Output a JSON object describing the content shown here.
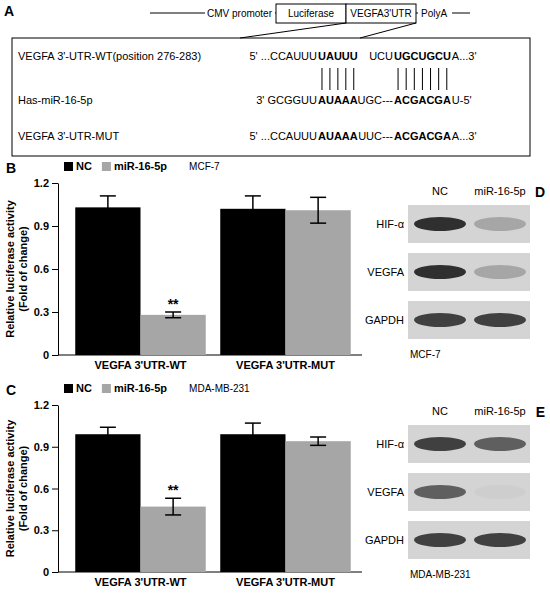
{
  "diagram": {
    "panel_label": "A",
    "construct": [
      "CMV promoter",
      "Luciferase",
      "VEGFA3'UTR",
      "PolyA"
    ],
    "alignment": [
      {
        "label": "VEGFA 3'-UTR-WT(position 276-283)",
        "segments": [
          {
            "text": "5' ...CCAUUU",
            "bold": false
          },
          {
            "text": "UAUUU",
            "bold": true
          },
          {
            "text": "UCU",
            "bold": false
          },
          {
            "text": "UGCUGCU",
            "bold": true
          },
          {
            "text": "A...3'",
            "bold": false
          }
        ]
      },
      {
        "label": "Has-miR-16-5p",
        "segments": [
          {
            "text": "3' GCGGUU",
            "bold": false
          },
          {
            "text": "AUAAA",
            "bold": true
          },
          {
            "text": "UGC---",
            "bold": false
          },
          {
            "text": "ACGACGA",
            "bold": true
          },
          {
            "text": "U-5'",
            "bold": false
          }
        ]
      },
      {
        "label": "VEGFA 3'-UTR-MUT",
        "segments": [
          {
            "text": "5' ...CCAUUU",
            "bold": false
          },
          {
            "text": "AUAAA",
            "bold": true
          },
          {
            "text": "UUC---",
            "bold": false
          },
          {
            "text": "ACGACGA",
            "bold": true
          },
          {
            "text": "A...3'",
            "bold": false
          }
        ]
      }
    ]
  },
  "chart_data": [
    {
      "type": "bar",
      "panel_label": "B",
      "title": "MCF-7",
      "y_label": [
        "Relative luciferase activity",
        "(Fold of change)"
      ],
      "categories": [
        "VEGFA 3'UTR-WT",
        "VEGFA 3'UTR-MUT"
      ],
      "series": [
        {
          "name": "NC",
          "color": "#000000",
          "values": [
            1.03,
            1.02
          ],
          "errors": [
            0.08,
            0.09
          ],
          "value_annotations": [
            null,
            null
          ]
        },
        {
          "name": "miR-16-5p",
          "color": "#a6a6a6",
          "values": [
            0.28,
            1.01
          ],
          "errors": [
            0.02,
            0.09
          ],
          "value_annotations": [
            "**",
            null
          ]
        }
      ],
      "ylim": [
        0,
        1.2
      ],
      "yticks": [
        0,
        0.3,
        0.6,
        0.9,
        1.2
      ],
      "legend": "top-left"
    },
    {
      "type": "bar",
      "panel_label": "C",
      "title": "MDA-MB-231",
      "y_label": [
        "Relative luciferase activity",
        "(Fold of change)"
      ],
      "categories": [
        "VEGFA 3'UTR-WT",
        "VEGFA 3'UTR-MUT"
      ],
      "series": [
        {
          "name": "NC",
          "color": "#000000",
          "values": [
            0.99,
            0.99
          ],
          "errors": [
            0.05,
            0.08
          ],
          "value_annotations": [
            null,
            null
          ]
        },
        {
          "name": "miR-16-5p",
          "color": "#a6a6a6",
          "values": [
            0.47,
            0.94
          ],
          "errors": [
            0.06,
            0.03
          ],
          "value_annotations": [
            "**",
            null
          ]
        }
      ],
      "ylim": [
        0,
        1.2
      ],
      "yticks": [
        0,
        0.3,
        0.6,
        0.9,
        1.2
      ],
      "legend": "top-left"
    }
  ],
  "blots": [
    {
      "panel_label": "D",
      "cell_line": "MCF-7",
      "columns": [
        "NC",
        "miR-16-5p"
      ],
      "rows": [
        {
          "label": "HIF-α",
          "intensity": [
            0.85,
            0.45
          ]
        },
        {
          "label": "VEGFA",
          "intensity": [
            0.85,
            0.45
          ]
        },
        {
          "label": "GAPDH",
          "intensity": [
            0.8,
            0.8
          ]
        }
      ]
    },
    {
      "panel_label": "E",
      "cell_line": "MDA-MB-231",
      "columns": [
        "NC",
        "miR-16-5p"
      ],
      "rows": [
        {
          "label": "HIF-α",
          "intensity": [
            0.8,
            0.7
          ]
        },
        {
          "label": "VEGFA",
          "intensity": [
            0.7,
            0.3
          ]
        },
        {
          "label": "GAPDH",
          "intensity": [
            0.8,
            0.8
          ]
        }
      ]
    }
  ]
}
